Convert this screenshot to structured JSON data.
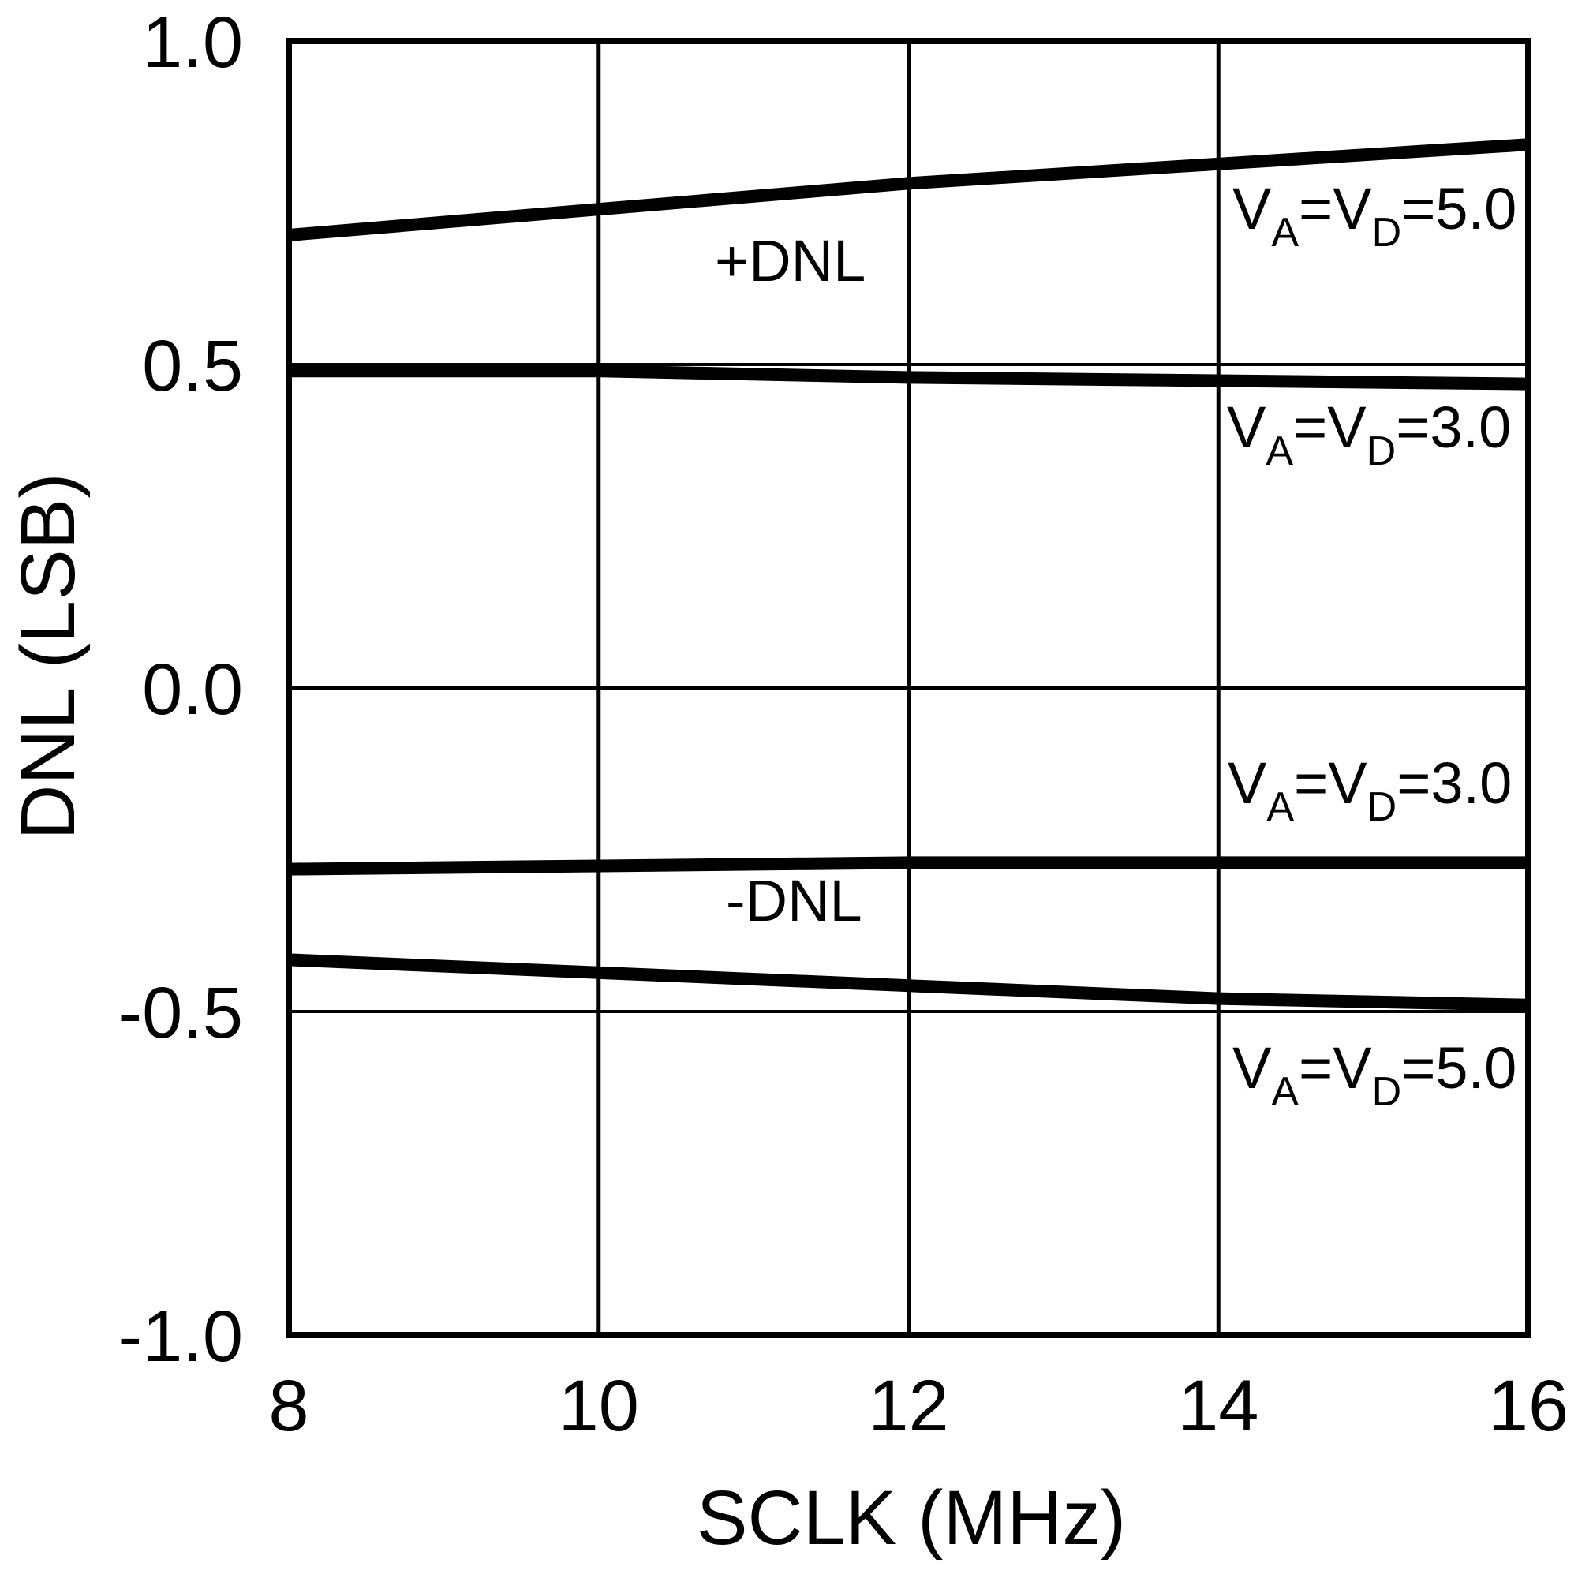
{
  "chart_data": {
    "type": "line",
    "title": "",
    "xlabel": "SCLK (MHz)",
    "ylabel": "DNL (LSB)",
    "xlim": [
      8,
      16
    ],
    "ylim": [
      -1.0,
      1.0
    ],
    "x_ticks": [
      8,
      10,
      12,
      14,
      16
    ],
    "x_tick_labels": [
      "8",
      "10",
      "12",
      "14",
      "16"
    ],
    "y_ticks": [
      1.0,
      0.5,
      0.0,
      -0.5,
      -1.0
    ],
    "y_tick_labels": [
      "1.0",
      "0.5",
      "0.0",
      "-0.5",
      "-1.0"
    ],
    "grid": true,
    "legend": "none (inline annotations)",
    "x": [
      8,
      10,
      12,
      14,
      16
    ],
    "series": [
      {
        "name": "+DNL VA=VD=5.0",
        "values": [
          0.7,
          0.74,
          0.78,
          0.81,
          0.84
        ]
      },
      {
        "name": "+DNL VA=VD=3.0",
        "values": [
          0.49,
          0.49,
          0.48,
          0.475,
          0.47
        ]
      },
      {
        "name": "-DNL VA=VD=3.0",
        "values": [
          -0.28,
          -0.275,
          -0.27,
          -0.27,
          -0.27
        ]
      },
      {
        "name": "-DNL VA=VD=5.0",
        "values": [
          -0.42,
          -0.44,
          -0.46,
          -0.48,
          -0.49
        ]
      }
    ],
    "annotations": [
      {
        "id": "plus_dnl",
        "text": "+DNL",
        "x": 10.95,
        "y": 0.64
      },
      {
        "id": "minus_dnl",
        "text": "-DNL",
        "x": 11.0,
        "y": -0.36
      },
      {
        "id": "va5_top",
        "text": "VA=VD=5.0",
        "x": 14.1,
        "y": 0.73
      },
      {
        "id": "va3_top",
        "text": "VA=VD=3.0",
        "x": 14.05,
        "y": 0.39
      },
      {
        "id": "va3_bot",
        "text": "VA=VD=3.0",
        "x": 14.05,
        "y": -0.17
      },
      {
        "id": "va5_bot",
        "text": "VA=VD=5.0",
        "x": 14.1,
        "y": -0.62
      }
    ]
  },
  "labels": {
    "x_axis_title": "SCLK (MHz)",
    "y_axis_title": "DNL (LSB)",
    "plus_dnl": "+DNL",
    "minus_dnl": "-DNL",
    "supply_label": {
      "v": "V",
      "sub_a": "A",
      "eq": "=",
      "sub_d": "D"
    },
    "supply_values": {
      "va5_top": "=5.0",
      "va3_top": "=3.0",
      "va3_bot": "=3.0",
      "va5_bot": "=5.0"
    }
  },
  "colors": {
    "line": "#000000",
    "grid": "#000000",
    "background": "#ffffff"
  }
}
